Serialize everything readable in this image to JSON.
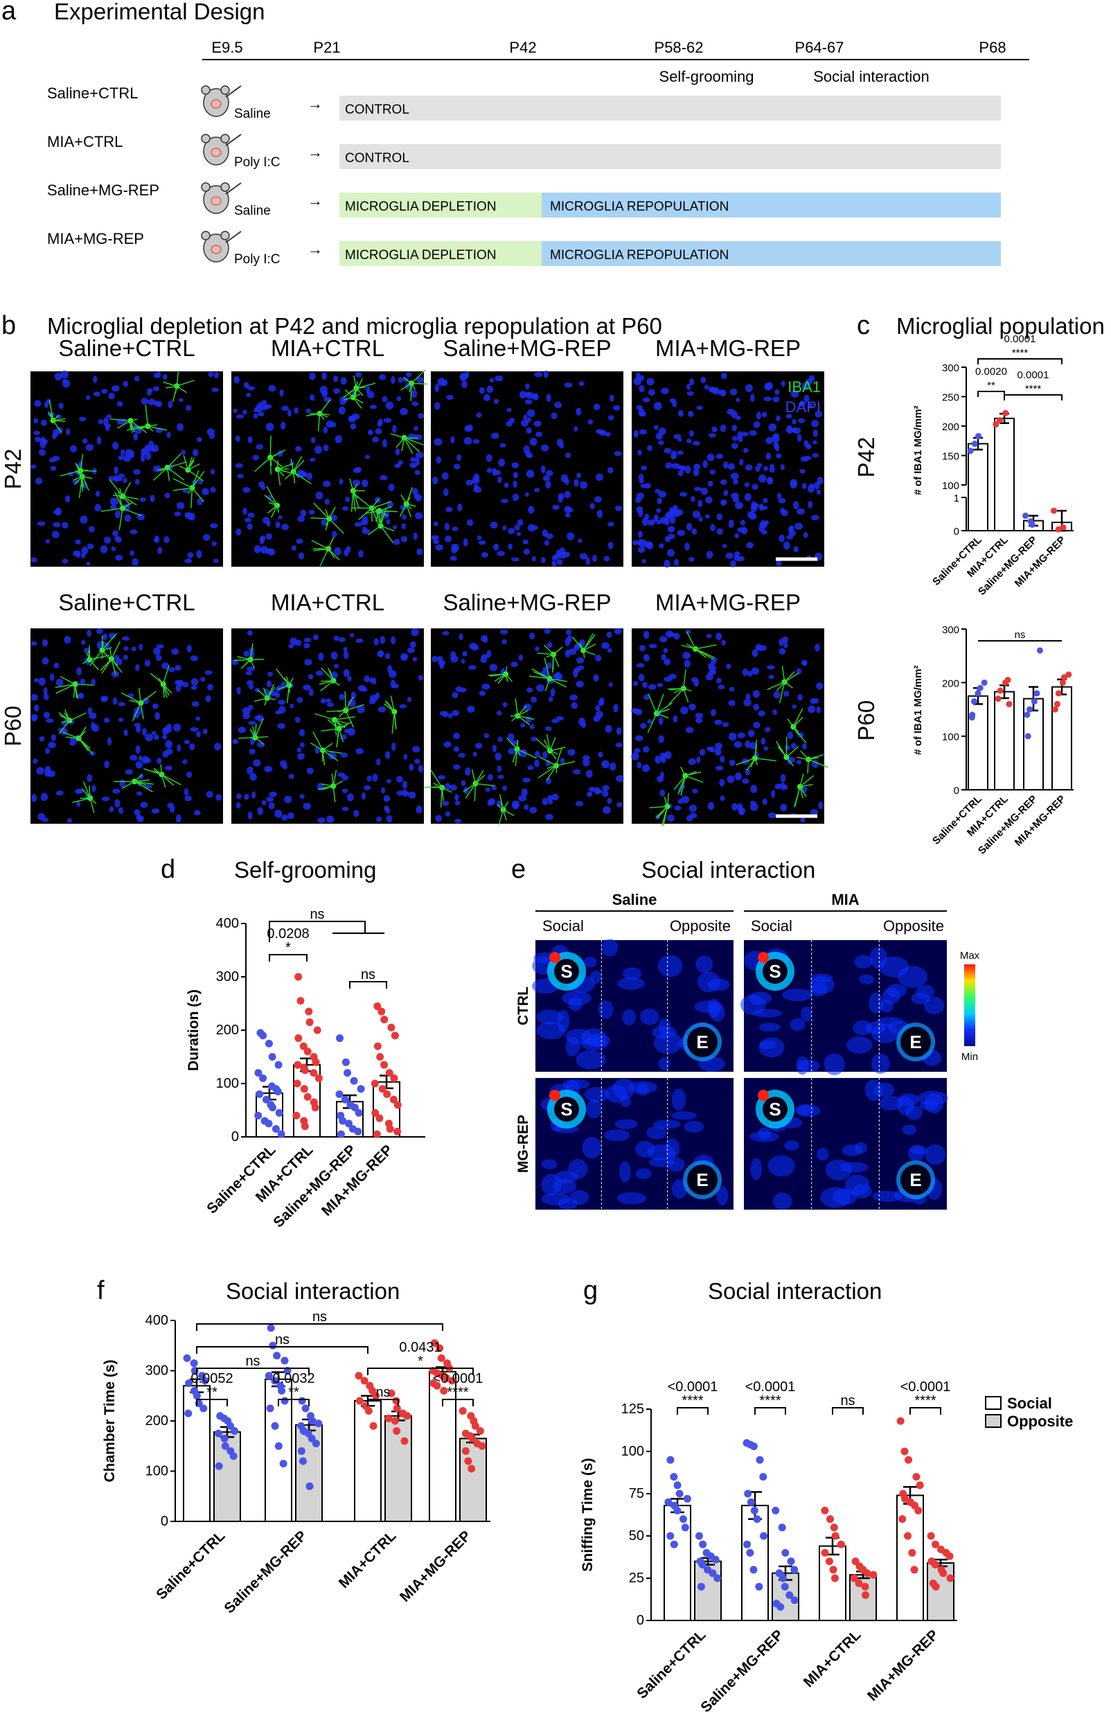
{
  "panels": {
    "a": "a",
    "b": "b",
    "c": "c",
    "d": "d",
    "e": "e",
    "f": "f",
    "g": "g"
  },
  "design": {
    "title": "Experimental Design",
    "timepoints": [
      {
        "label": "E9.5"
      },
      {
        "label": "P21"
      },
      {
        "label": "P42"
      },
      {
        "label": "P58-62",
        "event": "Self-grooming"
      },
      {
        "label": "P64-67",
        "event": "Social interaction"
      },
      {
        "label": "P68"
      }
    ],
    "rows": [
      {
        "group": "Saline+CTRL",
        "injection": "Saline",
        "phases": [
          "CONTROL"
        ]
      },
      {
        "group": "MIA+CTRL",
        "injection": "Poly I:C",
        "phases": [
          "CONTROL"
        ]
      },
      {
        "group": "Saline+MG-REP",
        "injection": "Saline",
        "phases": [
          "MICROGLIA DEPLETION",
          "MICROGLIA REPOPULATION"
        ]
      },
      {
        "group": "MIA+MG-REP",
        "injection": "Poly I:C",
        "phases": [
          "MICROGLIA DEPLETION",
          "MICROGLIA REPOPULATION"
        ]
      }
    ],
    "arrow": "→",
    "colors": {
      "control": "#e2e2e2",
      "depletion": "#d8f3c4",
      "repopulation": "#a9d3f4"
    }
  },
  "micrographs": {
    "title": "Microglial depletion at P42 and microglia repopulation at P60",
    "rows": [
      "P42",
      "P60"
    ],
    "columns": [
      "Saline+CTRL",
      "MIA+CTRL",
      "Saline+MG-REP",
      "MIA+MG-REP"
    ],
    "legend": [
      "IBA1",
      "DAPI"
    ],
    "legend_colors": [
      "#22dd22",
      "#3838ff"
    ]
  },
  "chart_data": [
    {
      "id": "c-P42",
      "type": "bar",
      "title": "Microglial population",
      "row_label": "P42",
      "ylabel": "# of IBA1 MG/mm²",
      "categories": [
        "Saline+CTRL",
        "MIA+CTRL",
        "Saline+MG-REP",
        "MIA+MG-REP"
      ],
      "values": [
        170,
        213,
        0.3,
        0.25
      ],
      "sem": [
        10,
        8,
        0.15,
        0.35
      ],
      "points": [
        [
          158,
          170,
          183
        ],
        [
          203,
          210,
          222
        ],
        [
          0.45,
          0.28,
          0.18
        ],
        [
          0.6,
          0.04,
          0.1
        ]
      ],
      "point_colors": [
        "#4a55e6",
        "#e83838",
        "#4a55e6",
        "#e83838"
      ],
      "broken_axis": {
        "lower_range": [
          0,
          1
        ],
        "upper_range": [
          100,
          300
        ]
      },
      "yticks_upper": [
        100,
        150,
        200,
        250,
        300
      ],
      "yticks_lower": [
        0,
        1
      ],
      "annotations": [
        {
          "from": 0,
          "to": 1,
          "p": "0.0020",
          "stars": "**"
        },
        {
          "from": 0,
          "to": 3,
          "p": "0.0001",
          "stars": "****"
        },
        {
          "from": 1,
          "to": 3,
          "p": "0.0001",
          "stars": "****"
        }
      ]
    },
    {
      "id": "c-P60",
      "type": "bar",
      "row_label": "P60",
      "ylabel": "# of IBA1 MG/mm²",
      "categories": [
        "Saline+CTRL",
        "MIA+CTRL",
        "Saline+MG-REP",
        "MIA+MG-REP"
      ],
      "values": [
        175,
        183,
        170,
        192
      ],
      "sem": [
        15,
        12,
        22,
        14
      ],
      "points": [
        [
          140,
          165,
          180,
          190,
          200,
          135
        ],
        [
          170,
          185,
          200,
          205,
          160
        ],
        [
          100,
          150,
          165,
          180,
          260,
          140
        ],
        [
          160,
          180,
          200,
          210,
          215,
          150
        ]
      ],
      "point_colors": [
        "#4a55e6",
        "#e83838",
        "#4a55e6",
        "#e83838"
      ],
      "ylim": [
        0,
        300
      ],
      "yticks": [
        0,
        100,
        200,
        300
      ],
      "annotations": [
        {
          "from": 0,
          "to": 3,
          "p": "",
          "stars": "ns"
        }
      ]
    },
    {
      "id": "d",
      "type": "bar",
      "title": "Self-grooming",
      "ylabel": "Duration (s)",
      "categories": [
        "Saline+CTRL",
        "MIA+CTRL",
        "Saline+MG-REP",
        "MIA+MG-REP"
      ],
      "values": [
        82,
        135,
        66,
        103
      ],
      "sem": [
        12,
        12,
        12,
        12
      ],
      "points": [
        [
          195,
          190,
          175,
          150,
          135,
          120,
          110,
          95,
          90,
          85,
          80,
          70,
          60,
          55,
          45,
          40,
          30,
          25,
          15,
          5
        ],
        [
          300,
          255,
          235,
          215,
          200,
          185,
          170,
          160,
          150,
          140,
          135,
          130,
          125,
          120,
          110,
          100,
          90,
          75,
          65,
          55,
          40,
          30,
          20
        ],
        [
          185,
          140,
          120,
          105,
          90,
          80,
          70,
          60,
          55,
          45,
          40,
          30,
          25,
          15,
          10,
          5
        ],
        [
          245,
          235,
          220,
          205,
          190,
          170,
          150,
          135,
          120,
          110,
          100,
          90,
          80,
          70,
          60,
          45,
          35,
          25,
          15,
          10,
          5
        ]
      ],
      "point_colors": [
        "#4a55e6",
        "#e83838",
        "#4a55e6",
        "#e83838"
      ],
      "ylim": [
        0,
        400
      ],
      "yticks": [
        0,
        100,
        200,
        300,
        400
      ],
      "annotations": [
        {
          "from": 0,
          "to": 1,
          "p": "0.0208",
          "stars": "*"
        },
        {
          "from": 2,
          "to": 3,
          "p": "",
          "stars": "ns"
        },
        {
          "from": 0,
          "to": 1.5,
          "p": "",
          "stars": "ns",
          "note": "Saline+CTRL vs MG-REP groups"
        }
      ]
    },
    {
      "id": "f",
      "type": "bar",
      "title": "Social interaction",
      "ylabel": "Chamber Time (s)",
      "categories": [
        "Saline+CTRL",
        "Saline+MG-REP",
        "MIA+CTRL",
        "MIA+MG-REP"
      ],
      "series": [
        {
          "name": "Social",
          "values": [
            270,
            283,
            240,
            298
          ],
          "sem": [
            13,
            14,
            10,
            9
          ],
          "points": [
            [
              325,
              315,
              300,
              290,
              280,
              275,
              260,
              250,
              235,
              225,
              215
            ],
            [
              385,
              350,
              330,
              320,
              300,
              290,
              280,
              270,
              260,
              240,
              225,
              190,
              150,
              115
            ],
            [
              290,
              280,
              270,
              260,
              250,
              240,
              230,
              220,
              190
            ],
            [
              355,
              345,
              325,
              315,
              305,
              300,
              295,
              290,
              285,
              280,
              275,
              270,
              260
            ]
          ]
        },
        {
          "name": "Opposite",
          "values": [
            178,
            192,
            210,
            165
          ],
          "sem": [
            10,
            11,
            9,
            8
          ],
          "points": [
            [
              210,
              205,
              200,
              190,
              180,
              175,
              165,
              150,
              140,
              130,
              110
            ],
            [
              240,
              225,
              210,
              200,
              195,
              190,
              180,
              175,
              165,
              155,
              140,
              120,
              70
            ],
            [
              255,
              240,
              225,
              215,
              210,
              205,
              200,
              180,
              160
            ],
            [
              220,
              210,
              200,
              190,
              180,
              175,
              170,
              165,
              155,
              150,
              140,
              120,
              105
            ]
          ]
        }
      ],
      "point_colors": [
        "#4a55e6",
        "#4a55e6",
        "#e83838",
        "#e83838"
      ],
      "ylim": [
        0,
        400
      ],
      "yticks": [
        0,
        100,
        200,
        300,
        400
      ],
      "annotations": [
        {
          "group": 0,
          "p": "0.0052",
          "stars": "**"
        },
        {
          "group": 1,
          "p": "0.0032",
          "stars": "**"
        },
        {
          "group": 2,
          "p": "",
          "stars": "ns"
        },
        {
          "group": 3,
          "p": "<0.0001",
          "stars": "****"
        },
        {
          "from": 0,
          "to": 1,
          "p": "",
          "stars": "ns"
        },
        {
          "from": 2,
          "to": 3,
          "p": "0.0431",
          "stars": "*"
        },
        {
          "from": 0,
          "to": 2,
          "p": "",
          "stars": "ns"
        },
        {
          "from": 0,
          "to": 3,
          "p": "",
          "stars": "ns"
        }
      ]
    },
    {
      "id": "g",
      "type": "bar",
      "title": "Social interaction",
      "ylabel": "Sniffing Time (s)",
      "categories": [
        "Saline+CTRL",
        "Saline+MG-REP",
        "MIA+CTRL",
        "MIA+MG-REP"
      ],
      "series": [
        {
          "name": "Social",
          "values": [
            68,
            68,
            44,
            74
          ],
          "sem": [
            4,
            8,
            5,
            5
          ],
          "points": [
            [
              95,
              85,
              80,
              75,
              72,
              70,
              68,
              65,
              60,
              55,
              50,
              45
            ],
            [
              105,
              104,
              103,
              95,
              85,
              75,
              70,
              65,
              60,
              50,
              45,
              40,
              30,
              20
            ],
            [
              65,
              60,
              55,
              50,
              45,
              40,
              35,
              30,
              25
            ],
            [
              118,
              100,
              95,
              85,
              80,
              75,
              72,
              70,
              68,
              65,
              60,
              50,
              40,
              30
            ]
          ]
        },
        {
          "name": "Opposite",
          "values": [
            35,
            28,
            27,
            34
          ],
          "sem": [
            2,
            4,
            2,
            2
          ],
          "points": [
            [
              50,
              45,
              40,
              38,
              36,
              35,
              33,
              30,
              28,
              25,
              20
            ],
            [
              65,
              55,
              40,
              35,
              30,
              28,
              25,
              20,
              15,
              12,
              10,
              8
            ],
            [
              35,
              32,
              30,
              28,
              27,
              25,
              22,
              20,
              15
            ],
            [
              50,
              45,
              42,
              40,
              38,
              35,
              33,
              30,
              28,
              25,
              22,
              20
            ]
          ]
        }
      ],
      "point_colors": [
        "#4a55e6",
        "#4a55e6",
        "#e83838",
        "#e83838"
      ],
      "ylim": [
        0,
        125
      ],
      "yticks": [
        0,
        25,
        50,
        75,
        100,
        125
      ],
      "legend": [
        "Social",
        "Opposite"
      ],
      "annotations": [
        {
          "group": 0,
          "p": "<0.0001",
          "stars": "****"
        },
        {
          "group": 1,
          "p": "<0.0001",
          "stars": "****"
        },
        {
          "group": 2,
          "p": "",
          "stars": "ns"
        },
        {
          "group": 3,
          "p": "<0.0001",
          "stars": "****"
        }
      ]
    }
  ],
  "heatmaps": {
    "title": "Social interaction",
    "conditions": [
      "Saline",
      "MIA"
    ],
    "rows": [
      "CTRL",
      "MG-REP"
    ],
    "chamber_labels": [
      "Social",
      "Opposite"
    ],
    "cup_labels": [
      "S",
      "E"
    ],
    "scale": [
      "Max",
      "Min"
    ]
  }
}
